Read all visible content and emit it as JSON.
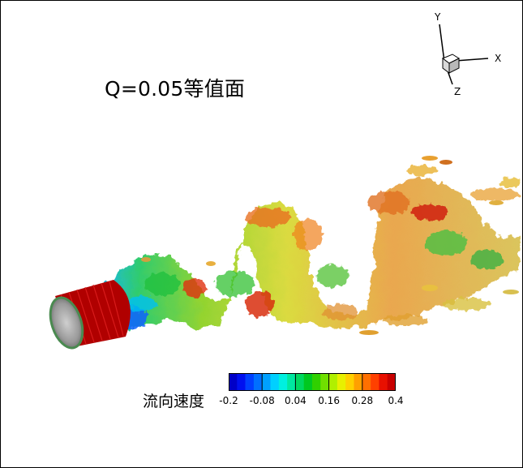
{
  "figure": {
    "title": "Q=0.05等值面",
    "axes_labels": {
      "y": "Y",
      "x": "X",
      "z": "Z"
    }
  },
  "colorbar": {
    "label": "流向速度",
    "min": -0.2,
    "max": 0.4,
    "tick_labels": [
      "-0.2",
      "-0.08",
      "0.04",
      "0.16",
      "0.28",
      "0.4"
    ],
    "colors": [
      "#0000c8",
      "#0010f0",
      "#0040ff",
      "#0070ff",
      "#00a0ff",
      "#00d0ff",
      "#00f0e0",
      "#00e8a0",
      "#00d860",
      "#00c820",
      "#30d000",
      "#70e000",
      "#b0f000",
      "#e8f000",
      "#ffd000",
      "#ffa000",
      "#ff7000",
      "#ff4000",
      "#e81000",
      "#c80000"
    ]
  }
}
